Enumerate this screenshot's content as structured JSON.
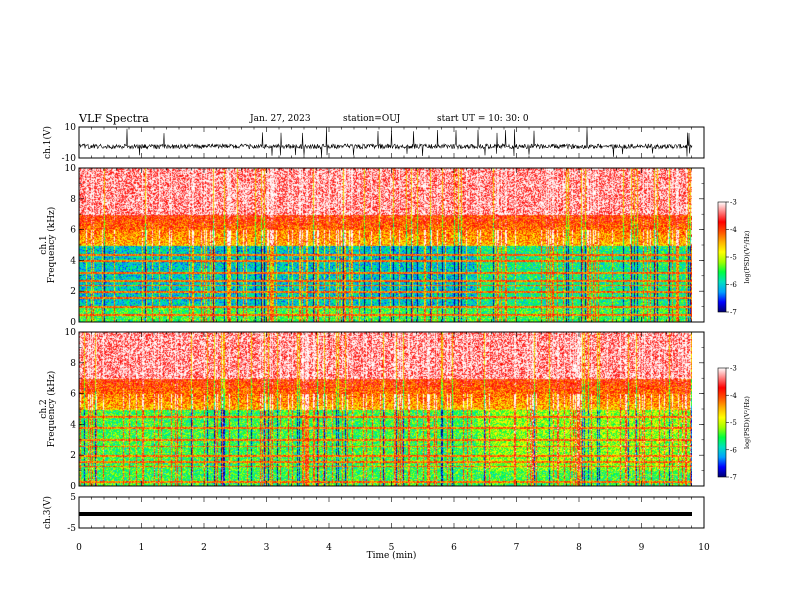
{
  "header": {
    "title": "VLF Spectra",
    "date": "Jan. 27, 2023",
    "station": "station=OUJ",
    "start": "start  UT =   10: 30: 0"
  },
  "colorbar_colors": [
    "#000070",
    "#0000ff",
    "#00a0ff",
    "#00e0c0",
    "#00ff40",
    "#a0ff00",
    "#ffff00",
    "#ffb000",
    "#ff5000",
    "#ff0000",
    "#ff8080",
    "#ffffff"
  ],
  "chart_data": [
    {
      "type": "line",
      "name": "ch1-waveform",
      "ylabel": "ch.1(V)",
      "ylim": [
        -10,
        10
      ],
      "yticks": [
        "10",
        "-10"
      ],
      "xlim": [
        0,
        10
      ],
      "description_values": {
        "baseline": -2.5,
        "min_spike": -10,
        "max_spike": 10
      }
    },
    {
      "type": "heatmap",
      "name": "ch1-spectrogram",
      "ylabel": "ch.1\nFrequency (kHz)",
      "ylim": [
        0,
        10
      ],
      "yticks": [
        "0",
        "2",
        "4",
        "6",
        "8",
        "10"
      ],
      "xlim": [
        0,
        9.8
      ],
      "colorbar": {
        "label": "log(PSD)(V²/Hz)",
        "range": [
          -7,
          -3
        ],
        "ticks": [
          "-3",
          "-4",
          "-5",
          "-6",
          "-7"
        ]
      },
      "bands_khz": [
        0.5,
        1.0,
        1.6,
        2.0,
        2.4,
        2.7,
        3.2,
        4.0,
        4.4
      ],
      "levels": {
        "0-1kHz": -5.5,
        "1-5kHz": -6,
        "5-7kHz": -4.5,
        "7-10kHz": -3.3
      }
    },
    {
      "type": "heatmap",
      "name": "ch2-spectrogram",
      "ylabel": "ch.2\nFrequency (kHz)",
      "ylim": [
        0,
        10
      ],
      "yticks": [
        "0",
        "2",
        "4",
        "6",
        "8",
        "10"
      ],
      "xlim": [
        0,
        9.8
      ],
      "colorbar": {
        "label": "log(PSD)(V²/Hz)",
        "range": [
          -7,
          -3
        ],
        "ticks": [
          "-3",
          "-4",
          "-5",
          "-6",
          "-7"
        ]
      },
      "bands_khz": [
        0.3,
        1.3,
        1.6,
        2.0,
        2.6,
        3.0,
        3.8,
        4.5
      ],
      "levels": {
        "0-1kHz": -5.5,
        "1-5kHz": -5.5,
        "5-7kHz": -4.5,
        "7-10kHz": -3.3
      }
    },
    {
      "type": "line",
      "name": "ch3-waveform",
      "ylabel": "ch.3(V)",
      "ylim": [
        -5,
        5
      ],
      "yticks": [
        "5",
        "-5"
      ],
      "xlim": [
        0,
        10
      ],
      "xlabel": "Time (min)",
      "xticks": [
        "0",
        "1",
        "2",
        "3",
        "4",
        "5",
        "6",
        "7",
        "8",
        "9",
        "10"
      ],
      "description_values": {
        "constant": -0.5
      }
    }
  ]
}
